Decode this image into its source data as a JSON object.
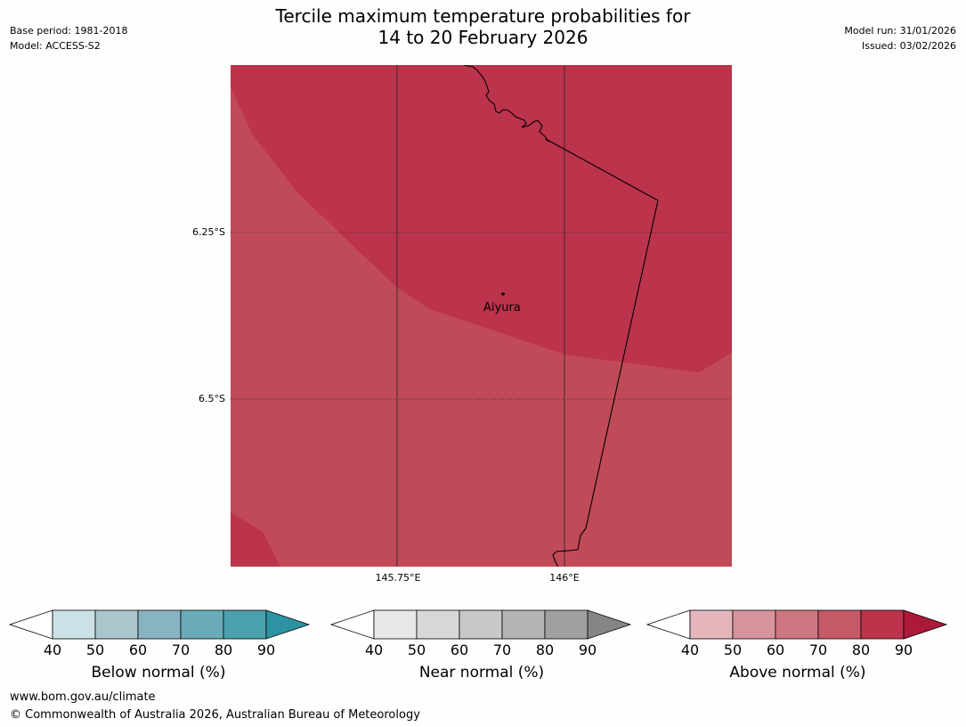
{
  "header": {
    "base_period": "Base period: 1981-2018",
    "model": "Model: ACCESS-S2",
    "title_line1": "Tercile maximum temperature probabilities for",
    "title_line2": "14 to 20 February 2026",
    "model_run": "Model run: 31/01/2026",
    "issued": "Issued: 03/02/2026"
  },
  "map": {
    "lat_labels": [
      "6.25°S",
      "6.5°S"
    ],
    "lon_labels": [
      "145.75°E",
      "146°E"
    ],
    "town": "Aiyura",
    "colors": {
      "high": "#bc334c",
      "mid": "#c14a58"
    }
  },
  "colorbars": [
    {
      "label": "Below normal (%)",
      "colors": [
        "#cbe1e6",
        "#a8c6cc",
        "#88b3c0",
        "#6aabb8",
        "#4aa0ae",
        "#2d93a3"
      ]
    },
    {
      "label": "Near normal (%)",
      "colors": [
        "#e8e8e8",
        "#d8d8d8",
        "#c8c8c8",
        "#b4b4b4",
        "#a0a0a0",
        "#858585"
      ]
    },
    {
      "label": "Above normal (%)",
      "colors": [
        "#e4b6bc",
        "#d8949c",
        "#cc7680",
        "#c55a66",
        "#bc334c",
        "#ab1a38"
      ]
    }
  ],
  "ticks": [
    "40",
    "50",
    "60",
    "70",
    "80",
    "90"
  ],
  "footer": {
    "url": "www.bom.gov.au/climate",
    "copyright": "© Commonwealth of Australia 2026, Australian Bureau of Meteorology"
  }
}
